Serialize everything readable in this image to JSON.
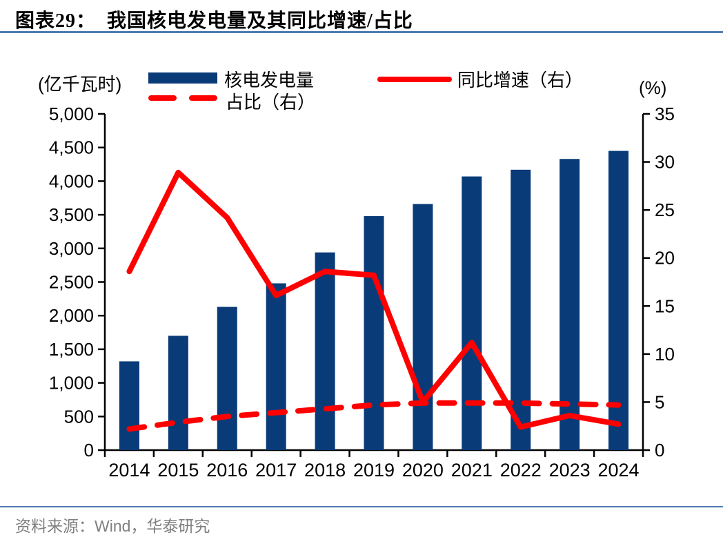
{
  "header": {
    "title": "图表29：  我国核电发电量及其同比增速/占比"
  },
  "footer": {
    "source": "资料来源：Wind，华泰研究"
  },
  "colors": {
    "bar_navy": "#083B78",
    "line_red": "#FF0000",
    "divider_blue": "#4E7CB2",
    "footer_gray": "#7F7F7F",
    "axis_black": "#000000"
  },
  "chart_data": {
    "type": "combo-bar-line",
    "title": "我国核电发电量及其同比增速/占比",
    "categories": [
      "2014",
      "2015",
      "2016",
      "2017",
      "2018",
      "2019",
      "2020",
      "2021",
      "2022",
      "2023",
      "2024"
    ],
    "series": [
      {
        "name": "核电发电量",
        "type": "bar",
        "axis": "left",
        "color": "#083B78",
        "values": [
          1320,
          1700,
          2130,
          2480,
          2940,
          3480,
          3660,
          4070,
          4170,
          4330,
          4450
        ]
      },
      {
        "name": "同比增速（右）",
        "type": "line",
        "line_style": "solid",
        "axis": "right",
        "color": "#FF0000",
        "values": [
          18.6,
          28.9,
          24.2,
          16.1,
          18.6,
          18.2,
          5.0,
          11.2,
          2.4,
          3.6,
          2.7
        ]
      },
      {
        "name": "占比（右）",
        "type": "line",
        "line_style": "dashed",
        "axis": "right",
        "color": "#FF0000",
        "values": [
          2.2,
          2.9,
          3.5,
          3.9,
          4.3,
          4.7,
          4.9,
          4.9,
          4.9,
          4.8,
          4.7
        ]
      }
    ],
    "left_axis": {
      "label": "(亿千瓦时)",
      "min": 0,
      "max": 5000,
      "step": 500
    },
    "right_axis": {
      "label": "(%)",
      "min": 0,
      "max": 35,
      "step": 5
    },
    "legend_position": "top",
    "grid": false
  }
}
